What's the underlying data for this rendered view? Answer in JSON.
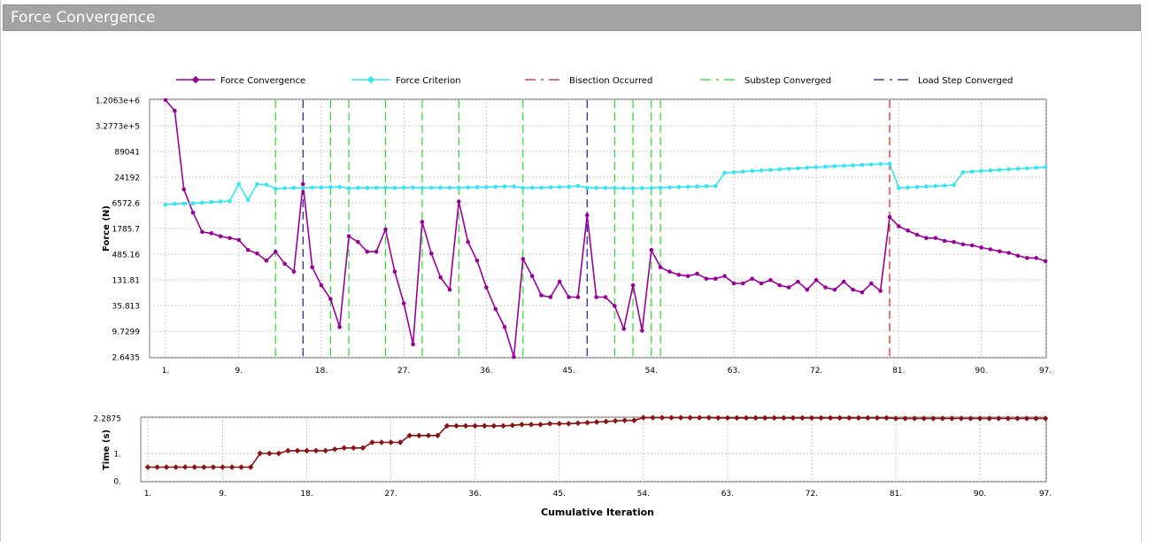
{
  "window": {
    "title": "Force Convergence"
  },
  "legend": {
    "items": [
      {
        "label": "Force Convergence",
        "style": "marker-line",
        "color": "#990099"
      },
      {
        "label": "Force Criterion",
        "style": "marker-line",
        "color": "#33e6f0"
      },
      {
        "label": "Bisection Occurred",
        "style": "dash",
        "color": "#e01818"
      },
      {
        "label": "Substep Converged",
        "style": "dash",
        "color": "#22dd22"
      },
      {
        "label": "Load Step Converged",
        "style": "dash",
        "color": "#1a1aa8"
      }
    ]
  },
  "chart_data": [
    {
      "type": "line",
      "name": "force-chart",
      "ylabel": "Force (N)",
      "yscale": "log",
      "xlim": [
        1,
        97
      ],
      "ylim": [
        2.6435,
        1206300
      ],
      "x_ticks": [
        "1.",
        "9.",
        "18.",
        "27.",
        "36.",
        "45.",
        "54.",
        "63.",
        "72.",
        "81.",
        "90.",
        "97."
      ],
      "x_tick_values": [
        1,
        9,
        18,
        27,
        36,
        45,
        54,
        63,
        72,
        81,
        90,
        97
      ],
      "y_ticks": [
        "1.2063e+6",
        "3.2773e+5",
        "89041",
        "24192",
        "6572.6",
        "1785.7",
        "485.16",
        "131.81",
        "35.813",
        "9.7299",
        "2.6435"
      ],
      "y_tick_values": [
        1206300,
        327730,
        89041,
        24192,
        6572.6,
        1785.7,
        485.16,
        131.81,
        35.813,
        9.7299,
        2.6435
      ],
      "grid": true,
      "series": [
        {
          "name": "Force Convergence",
          "color": "#990099",
          "x": [
            1,
            2,
            3,
            4,
            5,
            6,
            7,
            8,
            9,
            10,
            11,
            12,
            13,
            14,
            15,
            16,
            17,
            18,
            19,
            20,
            21,
            22,
            23,
            24,
            25,
            26,
            27,
            28,
            29,
            30,
            31,
            32,
            33,
            34,
            35,
            36,
            37,
            38,
            39,
            40,
            41,
            42,
            43,
            44,
            45,
            46,
            47,
            48,
            49,
            50,
            51,
            52,
            53,
            54,
            55,
            56,
            57,
            58,
            59,
            60,
            61,
            62,
            63,
            64,
            65,
            66,
            67,
            68,
            69,
            70,
            71,
            72,
            73,
            74,
            75,
            76,
            77,
            78,
            79,
            80,
            81,
            82,
            83,
            84,
            85,
            86,
            87,
            88,
            89,
            90,
            91,
            92,
            93,
            94,
            95,
            96,
            97
          ],
          "values": [
            1206300,
            700000,
            13000,
            4000,
            1500,
            1400,
            1200,
            1100,
            1000,
            600,
            500,
            350,
            550,
            300,
            200,
            17000,
            250,
            100,
            50,
            12,
            1200,
            900,
            550,
            550,
            1700,
            200,
            40,
            5,
            2500,
            500,
            150,
            80,
            7000,
            900,
            350,
            90,
            30,
            12,
            2.6435,
            380,
            160,
            60,
            55,
            120,
            55,
            55,
            3500,
            55,
            55,
            35,
            11,
            100,
            10,
            600,
            250,
            200,
            170,
            160,
            180,
            140,
            140,
            160,
            110,
            110,
            140,
            110,
            130,
            100,
            90,
            120,
            80,
            130,
            90,
            80,
            120,
            80,
            70,
            110,
            75,
            3200,
            2000,
            1600,
            1300,
            1100,
            1100,
            950,
            900,
            800,
            760,
            680,
            620,
            560,
            520,
            450,
            400,
            400,
            340
          ]
        },
        {
          "name": "Force Criterion",
          "color": "#33e6f0",
          "x": [
            1,
            2,
            3,
            4,
            5,
            6,
            7,
            8,
            9,
            10,
            11,
            12,
            13,
            14,
            15,
            16,
            17,
            18,
            19,
            20,
            21,
            22,
            23,
            24,
            25,
            26,
            27,
            28,
            29,
            30,
            31,
            32,
            33,
            34,
            35,
            36,
            37,
            38,
            39,
            40,
            41,
            42,
            43,
            44,
            45,
            46,
            47,
            48,
            49,
            50,
            51,
            52,
            53,
            54,
            55,
            56,
            57,
            58,
            59,
            60,
            61,
            62,
            63,
            64,
            65,
            66,
            67,
            68,
            69,
            70,
            71,
            72,
            73,
            74,
            75,
            76,
            77,
            78,
            79,
            80,
            81,
            82,
            83,
            84,
            85,
            86,
            87,
            88,
            89,
            90,
            91,
            92,
            93,
            94,
            95,
            96,
            97
          ],
          "values": [
            6000,
            6200,
            6300,
            6400,
            6600,
            6800,
            7000,
            7200,
            17000,
            7600,
            17000,
            16500,
            13500,
            13800,
            14000,
            14000,
            14300,
            14300,
            14500,
            14700,
            13800,
            14000,
            14000,
            14200,
            14200,
            14000,
            14200,
            14300,
            14000,
            14200,
            14200,
            14200,
            14200,
            14300,
            14500,
            14500,
            14800,
            15000,
            15000,
            14000,
            14200,
            14200,
            14400,
            14600,
            14800,
            15500,
            14200,
            14000,
            14000,
            14000,
            13800,
            13800,
            13800,
            14000,
            14200,
            14400,
            14600,
            14800,
            15000,
            15200,
            15400,
            30000,
            31000,
            32000,
            33000,
            34000,
            35000,
            36000,
            37000,
            38000,
            39000,
            40000,
            41000,
            42000,
            43000,
            44000,
            45000,
            46000,
            47000,
            48000,
            14000,
            14300,
            14600,
            15000,
            15400,
            15800,
            16200,
            31000,
            32000,
            33000,
            34000,
            35000,
            36000,
            37000,
            38000,
            39000,
            40000
          ]
        }
      ],
      "event_lines": {
        "bisection": [
          80
        ],
        "substep": [
          13,
          19,
          21,
          25,
          29,
          33,
          40,
          50,
          52,
          54,
          55
        ],
        "load_step": [
          16,
          47
        ]
      }
    },
    {
      "type": "line",
      "name": "time-chart",
      "ylabel": "Time (s)",
      "xlabel": "Cumulative Iteration",
      "xlim": [
        1,
        97
      ],
      "ylim": [
        0,
        2.2875
      ],
      "x_ticks": [
        "1.",
        "9.",
        "18.",
        "27.",
        "36.",
        "45.",
        "54.",
        "63.",
        "72.",
        "81.",
        "90.",
        "97."
      ],
      "x_tick_values": [
        1,
        9,
        18,
        27,
        36,
        45,
        54,
        63,
        72,
        81,
        90,
        97
      ],
      "y_ticks": [
        "2.2875",
        "1.",
        "0."
      ],
      "y_tick_values": [
        2.2875,
        1,
        0
      ],
      "grid": true,
      "series": [
        {
          "color": "#8b1010",
          "x": [
            1,
            2,
            3,
            4,
            5,
            6,
            7,
            8,
            9,
            10,
            11,
            12,
            13,
            14,
            15,
            16,
            17,
            18,
            19,
            20,
            21,
            22,
            23,
            24,
            25,
            26,
            27,
            28,
            29,
            30,
            31,
            32,
            33,
            34,
            35,
            36,
            37,
            38,
            39,
            40,
            41,
            42,
            43,
            44,
            45,
            46,
            47,
            48,
            49,
            50,
            51,
            52,
            53,
            54,
            55,
            56,
            57,
            58,
            59,
            60,
            61,
            62,
            63,
            64,
            65,
            66,
            67,
            68,
            69,
            70,
            71,
            72,
            73,
            74,
            75,
            76,
            77,
            78,
            79,
            80,
            81,
            82,
            83,
            84,
            85,
            86,
            87,
            88,
            89,
            90,
            91,
            92,
            93,
            94,
            95,
            96,
            97
          ],
          "values": [
            0.5,
            0.5,
            0.5,
            0.5,
            0.5,
            0.5,
            0.5,
            0.5,
            0.5,
            0.5,
            0.5,
            0.5,
            1.0,
            1.0,
            1.0,
            1.1,
            1.1,
            1.1,
            1.1,
            1.1,
            1.15,
            1.2,
            1.2,
            1.2,
            1.4,
            1.4,
            1.4,
            1.4,
            1.65,
            1.65,
            1.65,
            1.65,
            2.0,
            2.0,
            2.0,
            2.0,
            2.0,
            2.0,
            2.0,
            2.02,
            2.05,
            2.05,
            2.05,
            2.08,
            2.08,
            2.08,
            2.1,
            2.12,
            2.14,
            2.16,
            2.18,
            2.2,
            2.2,
            2.3,
            2.3,
            2.3,
            2.3,
            2.3,
            2.3,
            2.3,
            2.3,
            2.29,
            2.29,
            2.29,
            2.29,
            2.29,
            2.29,
            2.29,
            2.29,
            2.29,
            2.29,
            2.29,
            2.29,
            2.29,
            2.29,
            2.29,
            2.29,
            2.29,
            2.29,
            2.29,
            2.27,
            2.27,
            2.27,
            2.27,
            2.27,
            2.27,
            2.27,
            2.27,
            2.27,
            2.27,
            2.27,
            2.27,
            2.27,
            2.27,
            2.27,
            2.27,
            2.27
          ]
        }
      ]
    }
  ]
}
